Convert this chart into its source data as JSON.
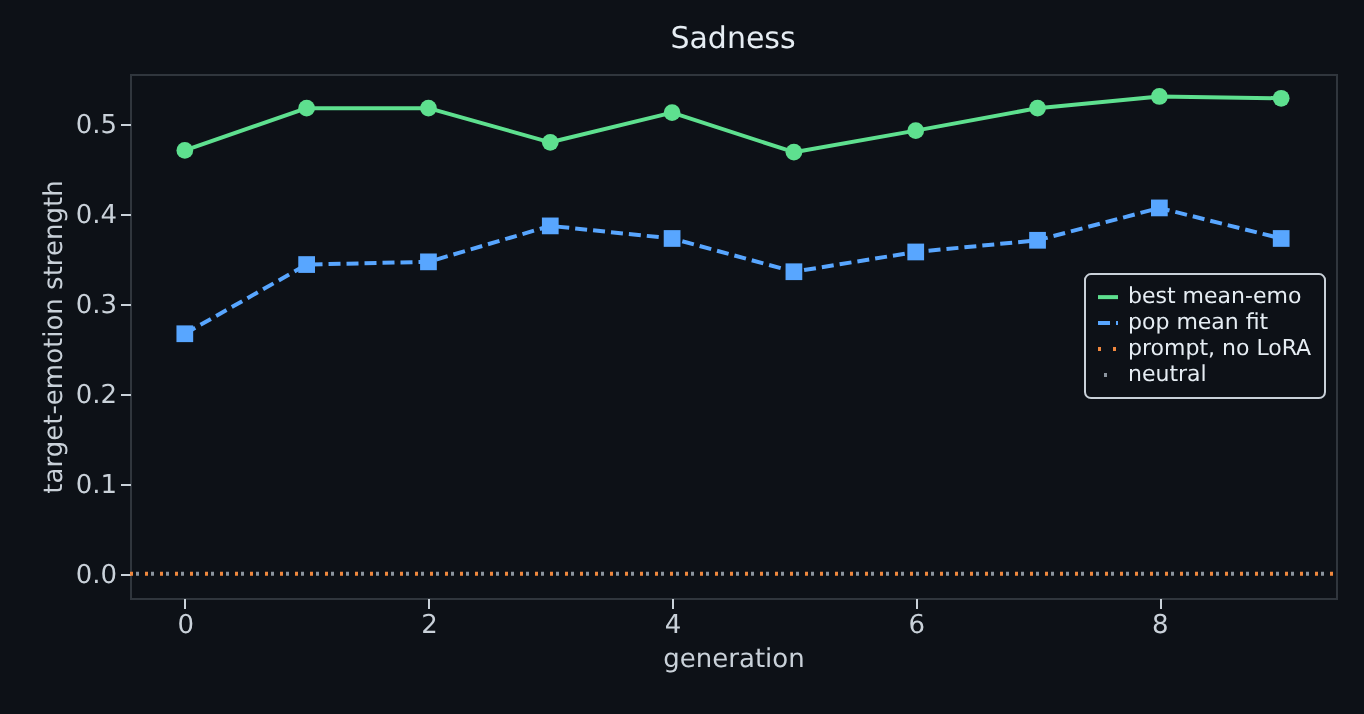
{
  "chart_data": {
    "type": "line",
    "title": "Sadness",
    "xlabel": "generation",
    "ylabel": "target-emotion strength",
    "xlim": [
      -0.45,
      9.45
    ],
    "xticks": [
      0,
      2,
      4,
      6,
      8
    ],
    "ylim": [
      -0.027,
      0.556
    ],
    "yticks": [
      {
        "value": 0,
        "label": "0.0"
      },
      0.1,
      0.2,
      0.3,
      0.4,
      0.5
    ],
    "legend": "right",
    "grid": false,
    "series": [
      {
        "name": "best mean-emo",
        "color": "#5ee08f",
        "marker": "circle",
        "line_style": "solid",
        "x": [
          0,
          1,
          2,
          3,
          4,
          5,
          6,
          7,
          8,
          9
        ],
        "values": [
          0.471,
          0.518,
          0.518,
          0.48,
          0.513,
          0.469,
          0.493,
          0.518,
          0.531,
          0.529
        ]
      },
      {
        "name": "pop mean fit",
        "color": "#58a6ff",
        "marker": "square",
        "line_style": "dashed",
        "x": [
          0,
          1,
          2,
          3,
          4,
          5,
          6,
          7,
          8,
          9
        ],
        "values": [
          0.267,
          0.344,
          0.347,
          0.387,
          0.373,
          0.336,
          0.358,
          0.371,
          0.407,
          0.373
        ]
      },
      {
        "name": "prompt, no LoRA",
        "color": "#f0883e",
        "marker": "none",
        "line_style": "dotted",
        "x": [
          -0.45,
          9.45
        ],
        "values": [
          0,
          0
        ]
      },
      {
        "name": "neutral",
        "color": "#8b949e",
        "marker": "none",
        "line_style": "dotted",
        "x": [
          -0.45,
          9.45
        ],
        "values": [
          0,
          0
        ]
      }
    ]
  }
}
